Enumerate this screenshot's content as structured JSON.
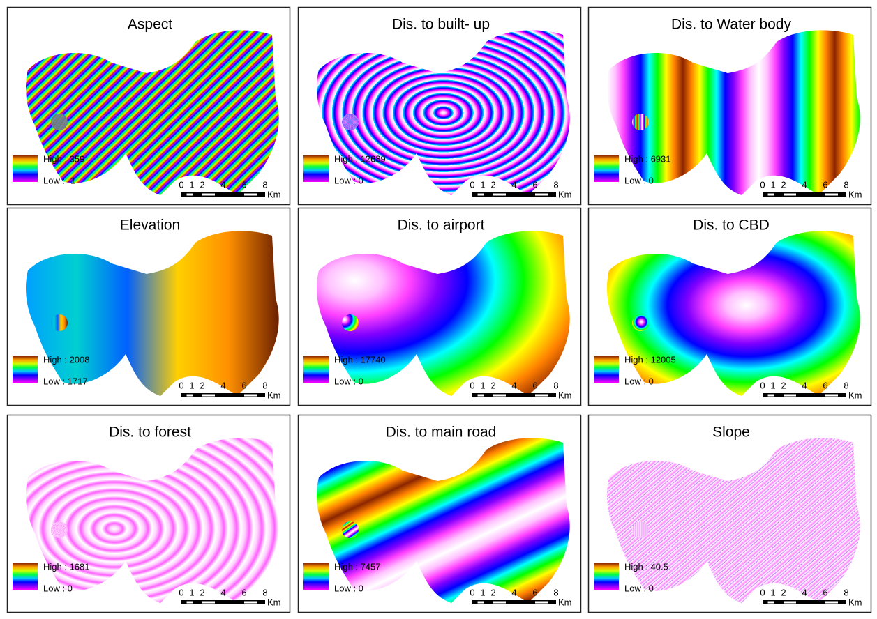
{
  "panels": [
    {
      "title": "Aspect",
      "high": "High : 359",
      "low": "Low : -1"
    },
    {
      "title": "Dis. to built- up",
      "high": "High : 12689",
      "low": "Low : 0"
    },
    {
      "title": "Dis. to Water body",
      "high": "High : 6931",
      "low": "Low : 0"
    },
    {
      "title": "Elevation",
      "high": "High : 2008",
      "low": "Low : 1717"
    },
    {
      "title": "Dis. to airport",
      "high": "High : 17740",
      "low": "Low : 0"
    },
    {
      "title": "Dis. to CBD",
      "high": "High : 12005",
      "low": "Low : 0"
    },
    {
      "title": "Dis. to forest",
      "high": "High : 1681",
      "low": "Low : 0"
    },
    {
      "title": "Dis. to main road",
      "high": "High : 7457",
      "low": "Low : 0"
    },
    {
      "title": "Slope",
      "high": "High : 40.5",
      "low": "Low : 0"
    }
  ],
  "scale_bar": {
    "ticks": [
      "0",
      "1",
      "2",
      "4",
      "6",
      "8"
    ],
    "unit": "Km"
  }
}
